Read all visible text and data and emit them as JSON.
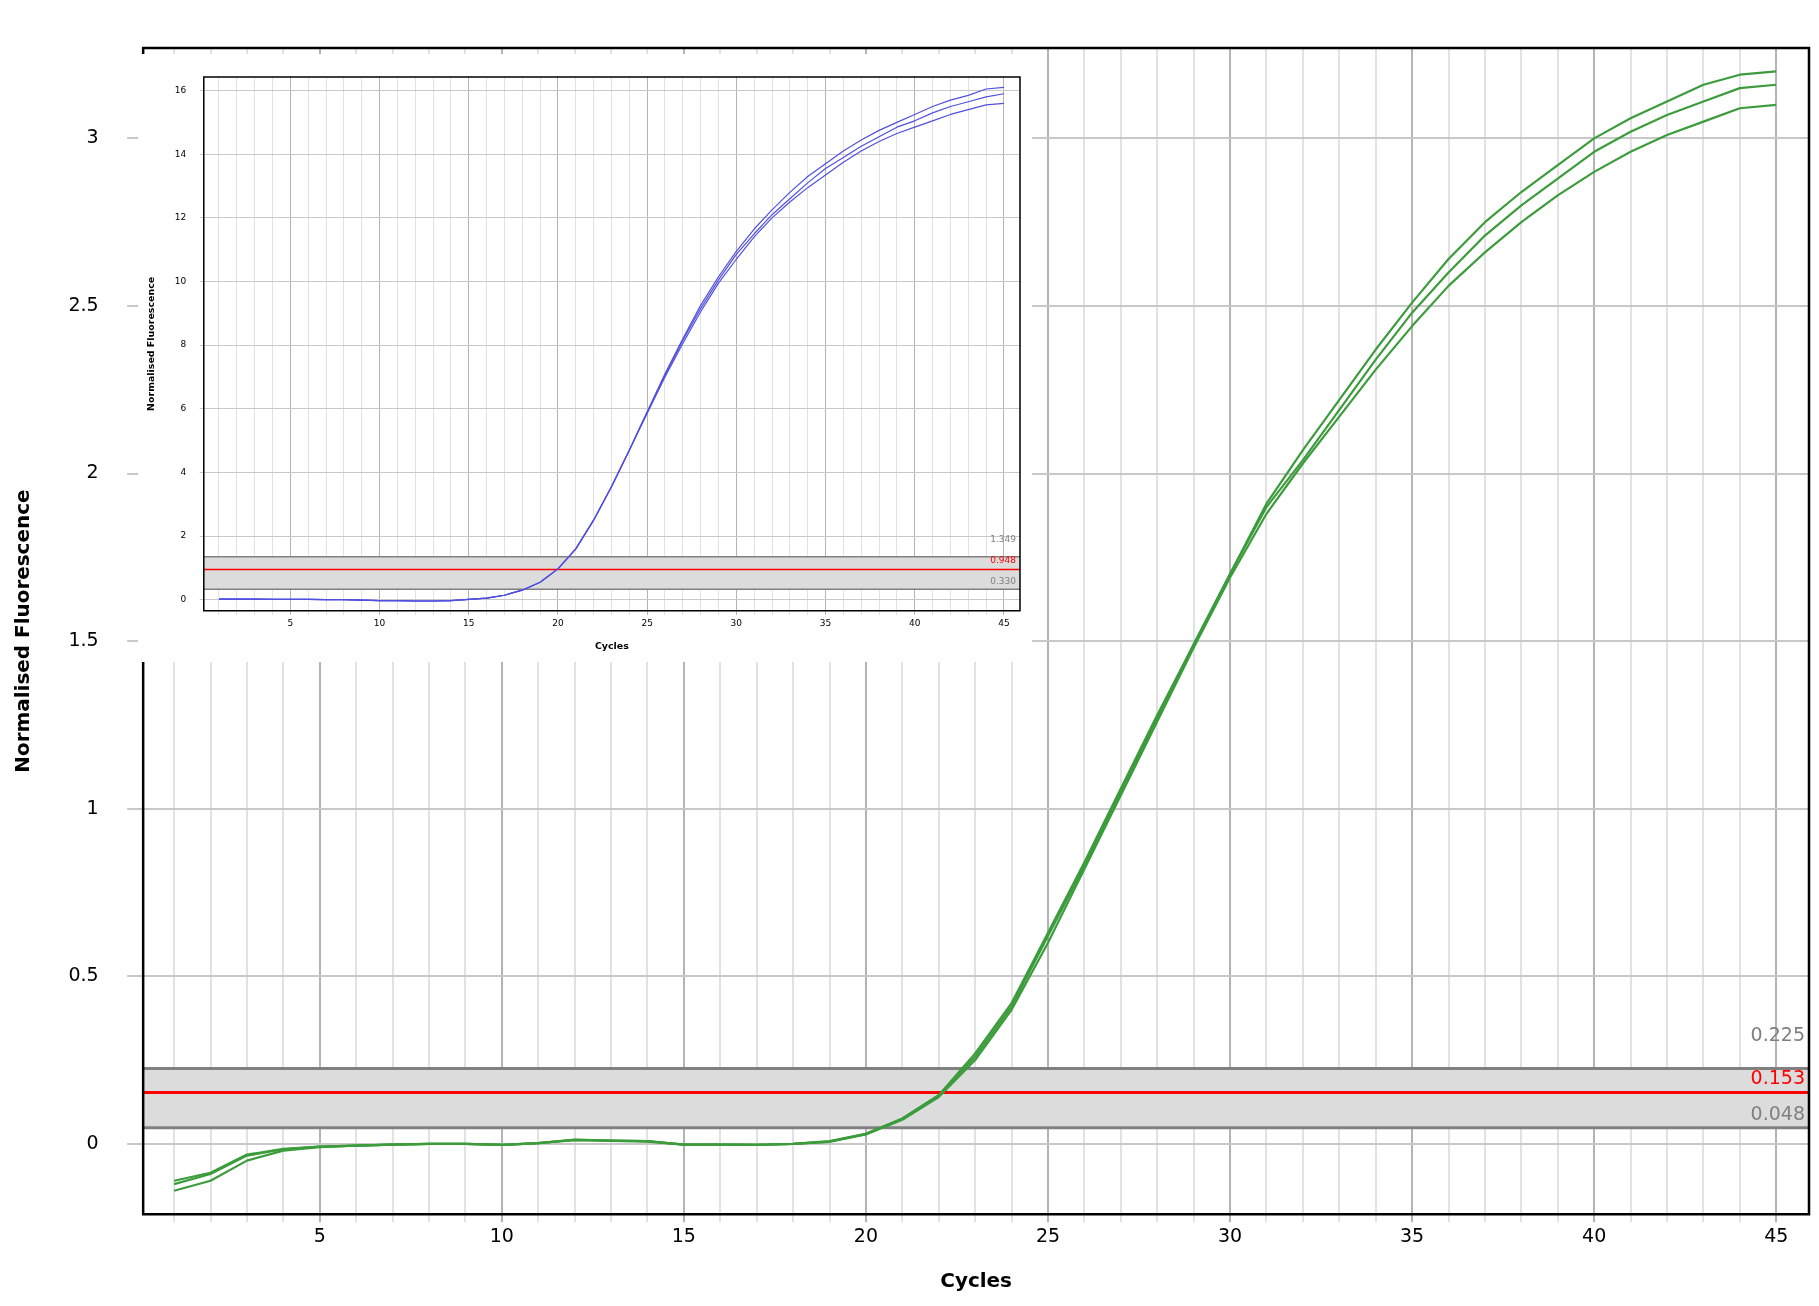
{
  "chart_data": [
    {
      "type": "line",
      "xlabel": "Cycles",
      "ylabel": "Normalised Fluorescence",
      "x": [
        1,
        2,
        3,
        4,
        5,
        6,
        7,
        8,
        9,
        10,
        11,
        12,
        13,
        14,
        15,
        16,
        17,
        18,
        19,
        20,
        21,
        22,
        23,
        24,
        25,
        26,
        27,
        28,
        29,
        30,
        31,
        32,
        33,
        34,
        35,
        36,
        37,
        38,
        39,
        40,
        41,
        42,
        43,
        44,
        45
      ],
      "series": [
        {
          "color": "#3c9c3c",
          "values": [
            -0.11,
            -0.086,
            -0.032,
            -0.015,
            -0.008,
            -0.005,
            -0.002,
            0,
            0,
            -0.003,
            0.002,
            0.013,
            0.01,
            0.008,
            -0.002,
            -0.002,
            -0.003,
            0,
            0.008,
            0.03,
            0.076,
            0.145,
            0.27,
            0.42,
            0.63,
            0.84,
            1.06,
            1.28,
            1.49,
            1.7,
            1.91,
            2.07,
            2.22,
            2.37,
            2.51,
            2.64,
            2.75,
            2.84,
            2.92,
            3.0,
            3.06,
            3.11,
            3.16,
            3.19,
            3.2
          ]
        },
        {
          "color": "#3c9c3c",
          "values": [
            -0.12,
            -0.09,
            -0.035,
            -0.016,
            -0.008,
            -0.005,
            -0.002,
            0,
            0,
            -0.003,
            0.002,
            0.012,
            0.01,
            0.008,
            -0.002,
            -0.002,
            -0.003,
            0,
            0.007,
            0.03,
            0.075,
            0.145,
            0.26,
            0.41,
            0.62,
            0.83,
            1.05,
            1.27,
            1.49,
            1.7,
            1.9,
            2.04,
            2.19,
            2.34,
            2.48,
            2.6,
            2.71,
            2.8,
            2.88,
            2.96,
            3.02,
            3.07,
            3.11,
            3.15,
            3.16
          ]
        },
        {
          "color": "#3c9c3c",
          "values": [
            -0.14,
            -0.11,
            -0.05,
            -0.02,
            -0.01,
            -0.005,
            -0.002,
            0,
            0,
            -0.003,
            0.002,
            0.011,
            0.009,
            0.007,
            -0.002,
            -0.002,
            -0.003,
            0,
            0.006,
            0.028,
            0.072,
            0.14,
            0.25,
            0.4,
            0.6,
            0.82,
            1.04,
            1.26,
            1.48,
            1.69,
            1.88,
            2.03,
            2.17,
            2.31,
            2.44,
            2.56,
            2.66,
            2.75,
            2.83,
            2.9,
            2.96,
            3.01,
            3.05,
            3.09,
            3.1
          ]
        }
      ],
      "xlim": [
        0.15,
        45.9
      ],
      "ylim": [
        -0.21,
        3.27
      ],
      "xticks": [
        {
          "value": 1,
          "label": null
        },
        {
          "value": 2,
          "label": null
        },
        {
          "value": 3,
          "label": null
        },
        {
          "value": 4,
          "label": null
        },
        5,
        {
          "value": 6,
          "label": null
        },
        {
          "value": 7,
          "label": null
        },
        {
          "value": 8,
          "label": null
        },
        {
          "value": 9,
          "label": null
        },
        10,
        {
          "value": 11,
          "label": null
        },
        {
          "value": 12,
          "label": null
        },
        {
          "value": 13,
          "label": null
        },
        {
          "value": 14,
          "label": null
        },
        15,
        {
          "value": 16,
          "label": null
        },
        {
          "value": 17,
          "label": null
        },
        {
          "value": 18,
          "label": null
        },
        {
          "value": 19,
          "label": null
        },
        20,
        {
          "value": 21,
          "label": null
        },
        {
          "value": 22,
          "label": null
        },
        {
          "value": 23,
          "label": null
        },
        {
          "value": 24,
          "label": null
        },
        25,
        {
          "value": 26,
          "label": null
        },
        {
          "value": 27,
          "label": null
        },
        {
          "value": 28,
          "label": null
        },
        {
          "value": 29,
          "label": null
        },
        30,
        {
          "value": 31,
          "label": null
        },
        {
          "value": 32,
          "label": null
        },
        {
          "value": 33,
          "label": null
        },
        {
          "value": 34,
          "label": null
        },
        35,
        {
          "value": 36,
          "label": null
        },
        {
          "value": 37,
          "label": null
        },
        {
          "value": 38,
          "label": null
        },
        {
          "value": 39,
          "label": null
        },
        40,
        {
          "value": 41,
          "label": null
        },
        {
          "value": 42,
          "label": null
        },
        {
          "value": 43,
          "label": null
        },
        {
          "value": 44,
          "label": null
        },
        45
      ],
      "yticks": [
        0,
        0.5,
        1,
        1.5,
        2,
        2.5,
        3
      ],
      "grid": true,
      "marker": "none",
      "line_style": "solid",
      "bands": [
        {
          "axis": "y",
          "from": 0.048,
          "to": 0.225,
          "color": "#dcdcdc"
        }
      ],
      "ref_lines": [
        {
          "axis": "y",
          "value": 0.225,
          "label": "0.225",
          "color": "#808080"
        },
        {
          "axis": "y",
          "value": 0.153,
          "label": "0.153",
          "color": "#ff0000"
        },
        {
          "axis": "y",
          "value": 0.048,
          "label": "0.048",
          "color": "#808080"
        }
      ]
    },
    {
      "type": "line",
      "xlabel": "Cycles",
      "ylabel": "Normalised Fluorescence",
      "x": [
        1,
        2,
        3,
        4,
        5,
        6,
        7,
        8,
        9,
        10,
        11,
        12,
        13,
        14,
        15,
        16,
        17,
        18,
        19,
        20,
        21,
        22,
        23,
        24,
        25,
        26,
        27,
        28,
        29,
        30,
        31,
        32,
        33,
        34,
        35,
        36,
        37,
        38,
        39,
        40,
        41,
        42,
        43,
        44,
        45
      ],
      "series": [
        {
          "color": "#5050e0",
          "values": [
            0.02,
            0.02,
            0.02,
            0.01,
            0.01,
            0.01,
            0,
            0,
            -0.01,
            -0.03,
            -0.03,
            -0.04,
            -0.04,
            -0.03,
            0.01,
            0.05,
            0.14,
            0.3,
            0.55,
            0.97,
            1.6,
            2.5,
            3.55,
            4.7,
            5.9,
            7.1,
            8.2,
            9.25,
            10.15,
            10.95,
            11.65,
            12.25,
            12.8,
            13.3,
            13.7,
            14.1,
            14.45,
            14.75,
            15.0,
            15.25,
            15.5,
            15.7,
            15.85,
            16.05,
            16.1
          ]
        },
        {
          "color": "#5050e0",
          "values": [
            0.02,
            0.02,
            0.02,
            0.01,
            0.01,
            0.01,
            0,
            0,
            -0.01,
            -0.03,
            -0.03,
            -0.04,
            -0.04,
            -0.03,
            0.01,
            0.05,
            0.14,
            0.3,
            0.55,
            0.97,
            1.6,
            2.5,
            3.55,
            4.7,
            5.9,
            7.05,
            8.15,
            9.15,
            10.05,
            10.85,
            11.5,
            12.1,
            12.6,
            13.1,
            13.55,
            13.9,
            14.25,
            14.55,
            14.85,
            15.05,
            15.3,
            15.5,
            15.65,
            15.8,
            15.9
          ]
        },
        {
          "color": "#5050e0",
          "values": [
            0.02,
            0.02,
            0.02,
            0.01,
            0.01,
            0.01,
            0,
            0,
            -0.01,
            -0.03,
            -0.03,
            -0.04,
            -0.04,
            -0.03,
            0.01,
            0.05,
            0.14,
            0.3,
            0.55,
            0.97,
            1.6,
            2.5,
            3.55,
            4.7,
            5.85,
            7.0,
            8.05,
            9.05,
            9.95,
            10.7,
            11.4,
            12.0,
            12.5,
            12.95,
            13.35,
            13.75,
            14.1,
            14.4,
            14.65,
            14.85,
            15.05,
            15.25,
            15.4,
            15.55,
            15.6
          ]
        }
      ],
      "xlim": [
        0.15,
        45.9
      ],
      "ylim": [
        -0.35,
        16.43
      ],
      "xticks": [
        {
          "value": 1,
          "label": null
        },
        {
          "value": 2,
          "label": null
        },
        {
          "value": 3,
          "label": null
        },
        {
          "value": 4,
          "label": null
        },
        5,
        {
          "value": 6,
          "label": null
        },
        {
          "value": 7,
          "label": null
        },
        {
          "value": 8,
          "label": null
        },
        {
          "value": 9,
          "label": null
        },
        10,
        {
          "value": 11,
          "label": null
        },
        {
          "value": 12,
          "label": null
        },
        {
          "value": 13,
          "label": null
        },
        {
          "value": 14,
          "label": null
        },
        15,
        {
          "value": 16,
          "label": null
        },
        {
          "value": 17,
          "label": null
        },
        {
          "value": 18,
          "label": null
        },
        {
          "value": 19,
          "label": null
        },
        20,
        {
          "value": 21,
          "label": null
        },
        {
          "value": 22,
          "label": null
        },
        {
          "value": 23,
          "label": null
        },
        {
          "value": 24,
          "label": null
        },
        25,
        {
          "value": 26,
          "label": null
        },
        {
          "value": 27,
          "label": null
        },
        {
          "value": 28,
          "label": null
        },
        {
          "value": 29,
          "label": null
        },
        30,
        {
          "value": 31,
          "label": null
        },
        {
          "value": 32,
          "label": null
        },
        {
          "value": 33,
          "label": null
        },
        {
          "value": 34,
          "label": null
        },
        35,
        {
          "value": 36,
          "label": null
        },
        {
          "value": 37,
          "label": null
        },
        {
          "value": 38,
          "label": null
        },
        {
          "value": 39,
          "label": null
        },
        40,
        {
          "value": 41,
          "label": null
        },
        {
          "value": 42,
          "label": null
        },
        {
          "value": 43,
          "label": null
        },
        {
          "value": 44,
          "label": null
        },
        45
      ],
      "yticks": [
        0,
        2,
        4,
        6,
        8,
        10,
        12,
        14,
        16
      ],
      "grid": true,
      "marker": "none",
      "line_style": "solid",
      "bands": [
        {
          "axis": "y",
          "from": 0.33,
          "to": 1.349,
          "color": "#dcdcdc"
        }
      ],
      "ref_lines": [
        {
          "axis": "y",
          "value": 1.349,
          "label": "1.349",
          "color": "#808080"
        },
        {
          "axis": "y",
          "value": 0.948,
          "label": "0.948",
          "color": "#ff0000"
        },
        {
          "axis": "y",
          "value": 0.33,
          "label": "0.330",
          "color": "#808080"
        }
      ]
    }
  ]
}
